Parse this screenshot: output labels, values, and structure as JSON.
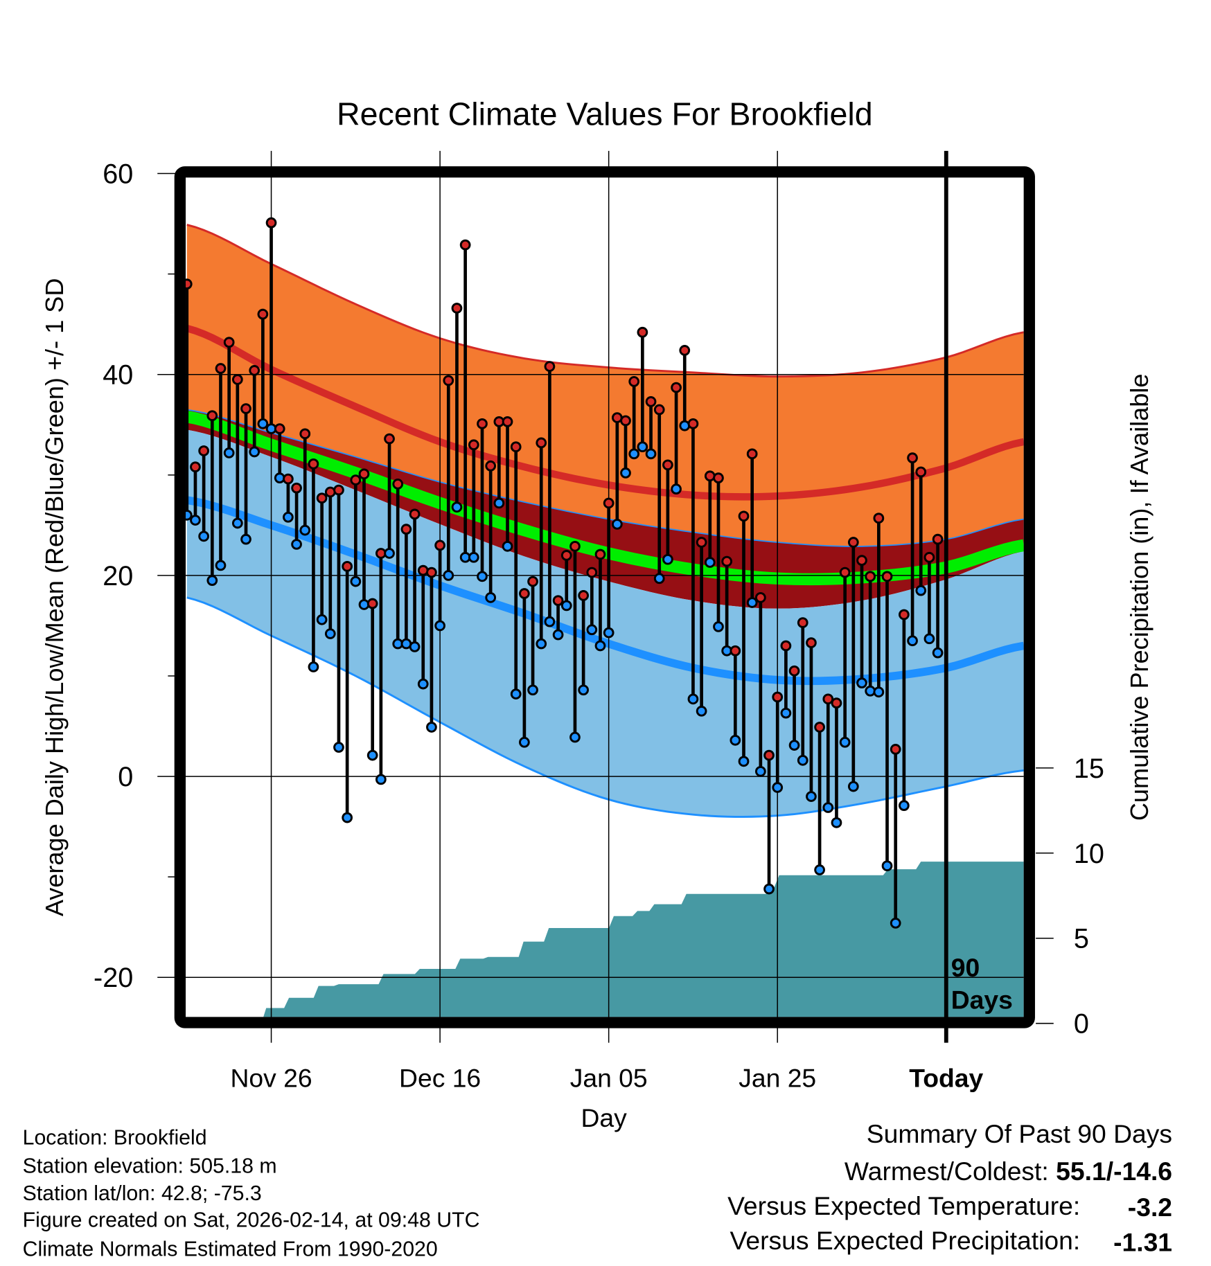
{
  "colors": {
    "orange_band": "#F47A30",
    "mean_high_line": "#D42A27",
    "overlap_band": "#960F14",
    "mean_line": "#00EE00",
    "low_band": "#82C0E6",
    "mean_low_line": "#1E90FF",
    "precip_area": "#4799A3",
    "high_dot": "#D42A27",
    "low_dot": "#1E90FF",
    "precip_anomaly": "#A0522D"
  },
  "chart_data": {
    "type": "line",
    "title": "Recent Climate Values For Brookfield",
    "xlabel": "Day",
    "ylabel": "Average Daily High/Low/Mean (Red/Blue/Green) +/- 1 SD",
    "ylabel_right": "Cumulative Precipitation (in), If Available",
    "x_units": "days relative to today",
    "xlim": [
      -90,
      9.2
    ],
    "ylim": [
      -24,
      60
    ],
    "ylim_right_ticks": [
      0,
      5,
      10,
      15
    ],
    "y_ticks": [
      "60",
      "40",
      "20",
      "0",
      "-20"
    ],
    "y_tick_values": [
      60,
      40,
      20,
      0,
      -20
    ],
    "y_minor_ticks": [
      50,
      30,
      10,
      -10
    ],
    "x_ticks": [
      {
        "day": -80,
        "label": "Nov 26"
      },
      {
        "day": -60,
        "label": "Dec 16"
      },
      {
        "day": -40,
        "label": "Jan 05"
      },
      {
        "day": -20,
        "label": "Jan 25"
      },
      {
        "day": 0,
        "label": "Today"
      }
    ],
    "right_tick_labels": [
      "0",
      "5",
      "10",
      "15"
    ],
    "period_label": [
      "90",
      "Days"
    ],
    "grid": true,
    "observed": {
      "start_day": -90,
      "highs": [
        49.0,
        30.8,
        32.4,
        35.9,
        40.6,
        43.2,
        39.5,
        36.6,
        40.4,
        46.0,
        55.1,
        34.6,
        29.6,
        28.7,
        34.1,
        31.1,
        27.7,
        28.3,
        28.5,
        20.9,
        29.5,
        30.1,
        17.2,
        22.2,
        33.6,
        29.1,
        24.6,
        26.1,
        20.5,
        20.3,
        23.0,
        39.4,
        46.6,
        52.9,
        33.0,
        35.1,
        30.9,
        35.3,
        35.3,
        32.8,
        18.2,
        19.4,
        33.2,
        40.8,
        17.5,
        22.0,
        22.9,
        18.0,
        20.3,
        22.1,
        27.2,
        35.7,
        35.4,
        39.3,
        44.2,
        37.3,
        36.5,
        31.0,
        38.7,
        42.4,
        35.1,
        23.3,
        29.9,
        29.7,
        21.4,
        12.5,
        25.9,
        32.1,
        17.8,
        2.1,
        7.9,
        13.0,
        10.5,
        15.3,
        13.3,
        4.9,
        7.7,
        7.3,
        20.3,
        23.3,
        21.5,
        19.9,
        25.7,
        19.9,
        2.7,
        16.1,
        31.7,
        30.3,
        21.8,
        23.6
      ],
      "lows": [
        26.0,
        25.5,
        23.9,
        19.5,
        21.0,
        32.2,
        25.2,
        23.6,
        32.3,
        35.1,
        34.6,
        29.7,
        25.8,
        23.1,
        24.5,
        10.9,
        15.6,
        14.2,
        2.9,
        -4.1,
        19.4,
        17.1,
        2.1,
        -0.3,
        22.2,
        13.2,
        13.2,
        12.9,
        9.2,
        4.9,
        15.0,
        20.0,
        26.8,
        21.8,
        21.8,
        19.9,
        17.8,
        27.2,
        22.9,
        8.2,
        3.4,
        8.6,
        13.2,
        15.4,
        14.1,
        17.0,
        3.9,
        8.6,
        14.6,
        13.0,
        14.3,
        25.1,
        30.2,
        32.1,
        32.8,
        32.1,
        19.7,
        21.6,
        28.6,
        34.9,
        7.7,
        6.5,
        21.3,
        14.9,
        12.5,
        3.6,
        1.5,
        17.3,
        0.5,
        -11.2,
        -1.1,
        6.3,
        3.1,
        1.6,
        -2.0,
        -9.3,
        -3.1,
        -4.6,
        3.4,
        -1.0,
        9.3,
        8.5,
        8.4,
        -8.9,
        -14.6,
        -2.9,
        13.5,
        18.5,
        13.7,
        12.3
      ]
    },
    "normals": {
      "days": [
        -90,
        -80,
        -70,
        -60,
        -50,
        -40,
        -30,
        -20,
        -10,
        0,
        9.2
      ],
      "high_plus_sd": [
        54.9,
        51.0,
        47.0,
        43.6,
        41.6,
        40.7,
        40.2,
        39.8,
        40.2,
        41.7,
        44.2
      ],
      "mean_high": [
        44.6,
        40.5,
        36.8,
        33.3,
        30.8,
        29.0,
        28.0,
        27.9,
        28.8,
        30.7,
        33.3
      ],
      "high_minus_sd": [
        36.5,
        34.2,
        31.8,
        29.3,
        27.3,
        25.6,
        24.3,
        23.3,
        22.9,
        23.6,
        25.6
      ],
      "mean": [
        35.8,
        33.0,
        30.2,
        27.2,
        24.5,
        22.2,
        20.6,
        19.7,
        19.8,
        20.8,
        23.0
      ],
      "low_plus_sd": [
        34.5,
        31.8,
        28.5,
        25.1,
        21.9,
        19.4,
        17.5,
        16.7,
        17.5,
        19.6,
        22.4
      ],
      "mean_low": [
        27.5,
        25.0,
        22.1,
        19.0,
        16.2,
        13.2,
        10.8,
        9.6,
        9.7,
        10.8,
        13.0
      ],
      "low_minus_sd": [
        17.8,
        14.0,
        10.0,
        5.4,
        1.0,
        -2.3,
        -3.8,
        -3.9,
        -2.7,
        -1.0,
        0.6
      ]
    },
    "cumulative_precip_in": [
      [
        -81.7,
        0.0
      ],
      [
        -80.6,
        0.9
      ],
      [
        -77.9,
        1.5
      ],
      [
        -74.4,
        2.2
      ],
      [
        -72.0,
        2.3
      ],
      [
        -66.7,
        2.9
      ],
      [
        -62.4,
        3.2
      ],
      [
        -57.6,
        3.8
      ],
      [
        -54.3,
        3.9
      ],
      [
        -50.1,
        4.8
      ],
      [
        -47.1,
        5.6
      ],
      [
        -39.4,
        6.3
      ],
      [
        -36.6,
        6.6
      ],
      [
        -34.6,
        7.0
      ],
      [
        -30.8,
        7.6
      ],
      [
        -20.8,
        8.0
      ],
      [
        -19.8,
        8.7
      ],
      [
        -6.9,
        9.05
      ],
      [
        -3.0,
        9.5
      ],
      [
        9.2,
        9.5
      ]
    ]
  },
  "footer": {
    "location": "Location: Brookfield",
    "elevation": "Station elevation: 505.18 m",
    "latlon": "Station lat/lon: 42.8; -75.3",
    "created": "Figure created on Sat, 2026-02-14, at 09:48 UTC",
    "normals": "Climate Normals Estimated From 1990-2020"
  },
  "summary": {
    "heading": "Summary Of Past 90 Days",
    "warmest_label": "Warmest/Coldest: ",
    "warmest_value": "55.1/-14.6",
    "temp_label": "Versus Expected Temperature:",
    "temp_value": "-3.2",
    "precip_label": "Versus Expected Precipitation:",
    "precip_value": "-1.31"
  }
}
